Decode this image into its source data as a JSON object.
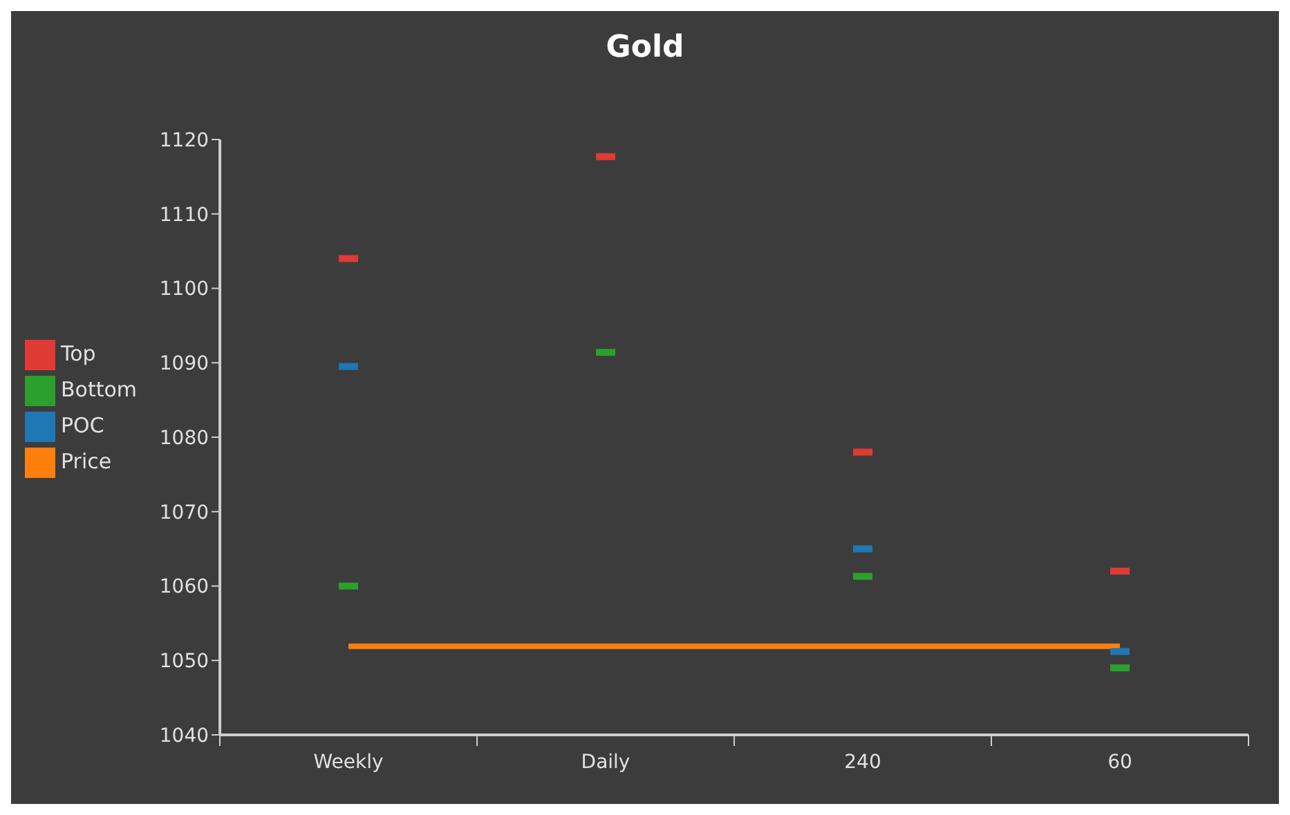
{
  "chart_data": {
    "type": "scatter",
    "title": "Gold",
    "categories": [
      "Weekly",
      "Daily",
      "240",
      "60"
    ],
    "series": [
      {
        "name": "Top",
        "color": "#e03a35",
        "values": [
          1104,
          1117.7,
          1078,
          1062
        ]
      },
      {
        "name": "Bottom",
        "color": "#2ca02c",
        "values": [
          1060,
          1091.4,
          1061.3,
          1049
        ]
      },
      {
        "name": "POC",
        "color": "#1f77b4",
        "values": [
          1089.5,
          null,
          1065,
          1051.2
        ]
      },
      {
        "name": "Price",
        "type": "line",
        "color": "#ff7f0e",
        "values": [
          1051.9,
          1051.9,
          1051.9,
          1051.9
        ]
      }
    ],
    "ylim": [
      1040,
      1120
    ],
    "yticks": [
      1040,
      1050,
      1060,
      1070,
      1080,
      1090,
      1100,
      1110,
      1120
    ],
    "grid": false,
    "legend": "left"
  }
}
